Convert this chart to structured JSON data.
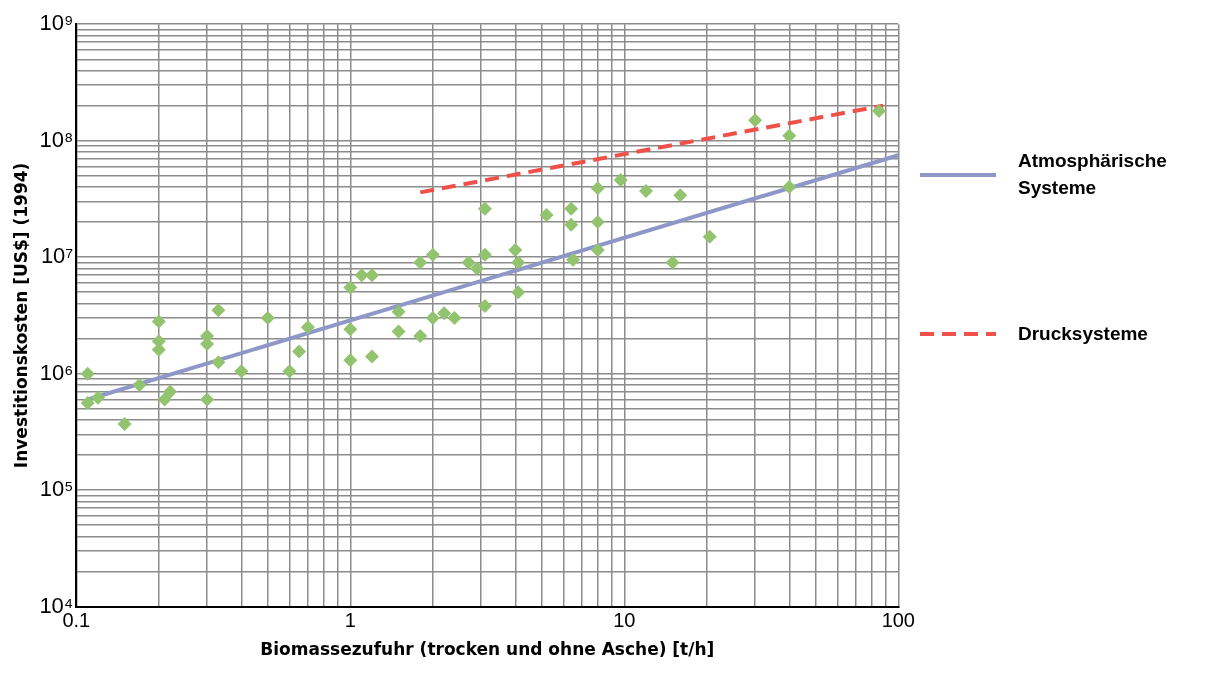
{
  "chart_data": {
    "type": "scatter",
    "xlabel": "Biomassezufuhr (trocken und ohne Asche) [t/h]",
    "ylabel": "Investitionskosten [US$] (1994)",
    "log": "xy",
    "grid": true,
    "legend": "right",
    "marker": "diamond",
    "xlim": [
      0.1,
      100
    ],
    "ylim": [
      10000,
      1000000000
    ],
    "xticks": [
      0.1,
      {
        "value": 0.2,
        "label": null
      },
      {
        "value": 0.3,
        "label": null
      },
      {
        "value": 0.4,
        "label": null
      },
      {
        "value": 0.5,
        "label": null
      },
      {
        "value": 0.6,
        "label": null
      },
      {
        "value": 0.7,
        "label": null
      },
      {
        "value": 0.8,
        "label": null
      },
      {
        "value": 0.9,
        "label": null
      },
      1,
      {
        "value": 2,
        "label": null
      },
      {
        "value": 3,
        "label": null
      },
      {
        "value": 4,
        "label": null
      },
      {
        "value": 5,
        "label": null
      },
      {
        "value": 6,
        "label": null
      },
      {
        "value": 7,
        "label": null
      },
      {
        "value": 8,
        "label": null
      },
      {
        "value": 9,
        "label": null
      },
      10,
      {
        "value": 20,
        "label": null
      },
      {
        "value": 30,
        "label": null
      },
      {
        "value": 40,
        "label": null
      },
      {
        "value": 50,
        "label": null
      },
      {
        "value": 60,
        "label": null
      },
      {
        "value": 70,
        "label": null
      },
      {
        "value": 80,
        "label": null
      },
      {
        "value": 90,
        "label": null
      },
      100
    ],
    "yticks": [
      {
        "value": 10000,
        "label": "10⁴"
      },
      {
        "value": 20000,
        "label": null
      },
      {
        "value": 30000,
        "label": null
      },
      {
        "value": 40000,
        "label": null
      },
      {
        "value": 50000,
        "label": null
      },
      {
        "value": 60000,
        "label": null
      },
      {
        "value": 70000,
        "label": null
      },
      {
        "value": 80000,
        "label": null
      },
      {
        "value": 90000,
        "label": null
      },
      {
        "value": 100000,
        "label": "10⁵"
      },
      {
        "value": 200000,
        "label": null
      },
      {
        "value": 300000,
        "label": null
      },
      {
        "value": 400000,
        "label": null
      },
      {
        "value": 500000,
        "label": null
      },
      {
        "value": 600000,
        "label": null
      },
      {
        "value": 700000,
        "label": null
      },
      {
        "value": 800000,
        "label": null
      },
      {
        "value": 900000,
        "label": null
      },
      {
        "value": 1000000,
        "label": "10⁶"
      },
      {
        "value": 2000000,
        "label": null
      },
      {
        "value": 3000000,
        "label": null
      },
      {
        "value": 4000000,
        "label": null
      },
      {
        "value": 5000000,
        "label": null
      },
      {
        "value": 6000000,
        "label": null
      },
      {
        "value": 7000000,
        "label": null
      },
      {
        "value": 8000000,
        "label": null
      },
      {
        "value": 9000000,
        "label": null
      },
      {
        "value": 10000000,
        "label": "10⁷"
      },
      {
        "value": 20000000,
        "label": null
      },
      {
        "value": 30000000,
        "label": null
      },
      {
        "value": 40000000,
        "label": null
      },
      {
        "value": 50000000,
        "label": null
      },
      {
        "value": 60000000,
        "label": null
      },
      {
        "value": 70000000,
        "label": null
      },
      {
        "value": 80000000,
        "label": null
      },
      {
        "value": 90000000,
        "label": null
      },
      {
        "value": 100000000,
        "label": "10⁸"
      },
      {
        "value": 200000000,
        "label": null
      },
      {
        "value": 300000000,
        "label": null
      },
      {
        "value": 400000000,
        "label": null
      },
      {
        "value": 500000000,
        "label": null
      },
      {
        "value": 600000000,
        "label": null
      },
      {
        "value": 700000000,
        "label": null
      },
      {
        "value": 800000000,
        "label": null
      },
      {
        "value": 900000000,
        "label": null
      },
      {
        "value": 1000000000,
        "label": "10⁹"
      }
    ],
    "series": [
      {
        "color": "#92c36f",
        "x": [
          0.11,
          0.11,
          0.12,
          0.15,
          0.17,
          0.2,
          0.2,
          0.2,
          0.21,
          0.22,
          0.3,
          0.3,
          0.3,
          0.33,
          0.33,
          0.4,
          0.5,
          0.6,
          0.65,
          0.7,
          1.0,
          1.0,
          1.0,
          1.1,
          1.2,
          1.2,
          1.5,
          1.5,
          1.8,
          1.8,
          2.0,
          2.0,
          2.2,
          2.4,
          2.7,
          2.9,
          3.1,
          3.1,
          3.1,
          4.0,
          4.1,
          4.1,
          5.2,
          6.4,
          6.4,
          6.5,
          8,
          8,
          8,
          9.7,
          12,
          15,
          16,
          20.5,
          30,
          40,
          40,
          85
        ],
        "values": [
          1000000,
          560000,
          620000,
          370000,
          800000,
          2800000,
          1900000,
          1600000,
          600000,
          700000,
          2100000,
          1800000,
          600000,
          3500000,
          1250000,
          1050000,
          3000000,
          1050000,
          1550000,
          2500000,
          5500000,
          2400000,
          1300000,
          7000000,
          7000000,
          1400000,
          3400000,
          2300000,
          9000000,
          2100000,
          10500000,
          3000000,
          3300000,
          3000000,
          9000000,
          8000000,
          26000000,
          10500000,
          3800000,
          11500000,
          9000000,
          5000000,
          23000000,
          26000000,
          19000000,
          9500000,
          39000000,
          20000000,
          11500000,
          46000000,
          37000000,
          9000000,
          34000000,
          15000000,
          150000000,
          110000000,
          40000000,
          180000000
        ]
      },
      {
        "type": "line",
        "name": "Atmosphärische Systeme",
        "color": "#8e97c8",
        "line_style": "solid",
        "marker": "none",
        "x": [
          0.11,
          100
        ],
        "values": [
          600000,
          75000000
        ]
      },
      {
        "type": "line",
        "name": "Drucksysteme",
        "color": "#f0504a",
        "line_style": "dashed",
        "marker": "none",
        "x": [
          1.8,
          88
        ],
        "values": [
          36000000,
          200000000
        ]
      }
    ]
  }
}
